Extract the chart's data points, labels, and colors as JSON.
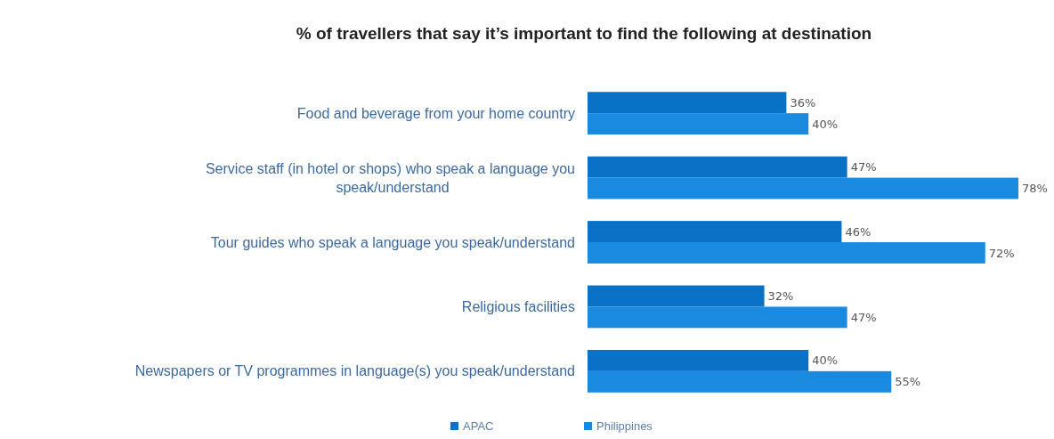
{
  "chart_data": {
    "type": "bar",
    "orientation": "horizontal",
    "title": "% of travellers that say it’s important to find the following at destination",
    "categories": [
      "Food and beverage from your home country",
      "Service staff (in hotel or shops) who speak a language you speak/understand",
      "Tour guides who speak a language you speak/understand",
      "Religious facilities",
      "Newspapers or TV programmes in language(s) you speak/understand"
    ],
    "series": [
      {
        "name": "APAC",
        "color": "#0a72c6",
        "values": [
          36,
          47,
          46,
          32,
          40
        ],
        "value_labels": [
          "36%",
          "47%",
          "46%",
          "32%",
          "40%"
        ]
      },
      {
        "name": "Philippines",
        "color": "#1a8ae0",
        "values": [
          40,
          78,
          72,
          47,
          55
        ],
        "value_labels": [
          "40%",
          "78%",
          "72%",
          "47%",
          "55%"
        ]
      }
    ],
    "tick_labels": "y",
    "legend": "bottom"
  }
}
